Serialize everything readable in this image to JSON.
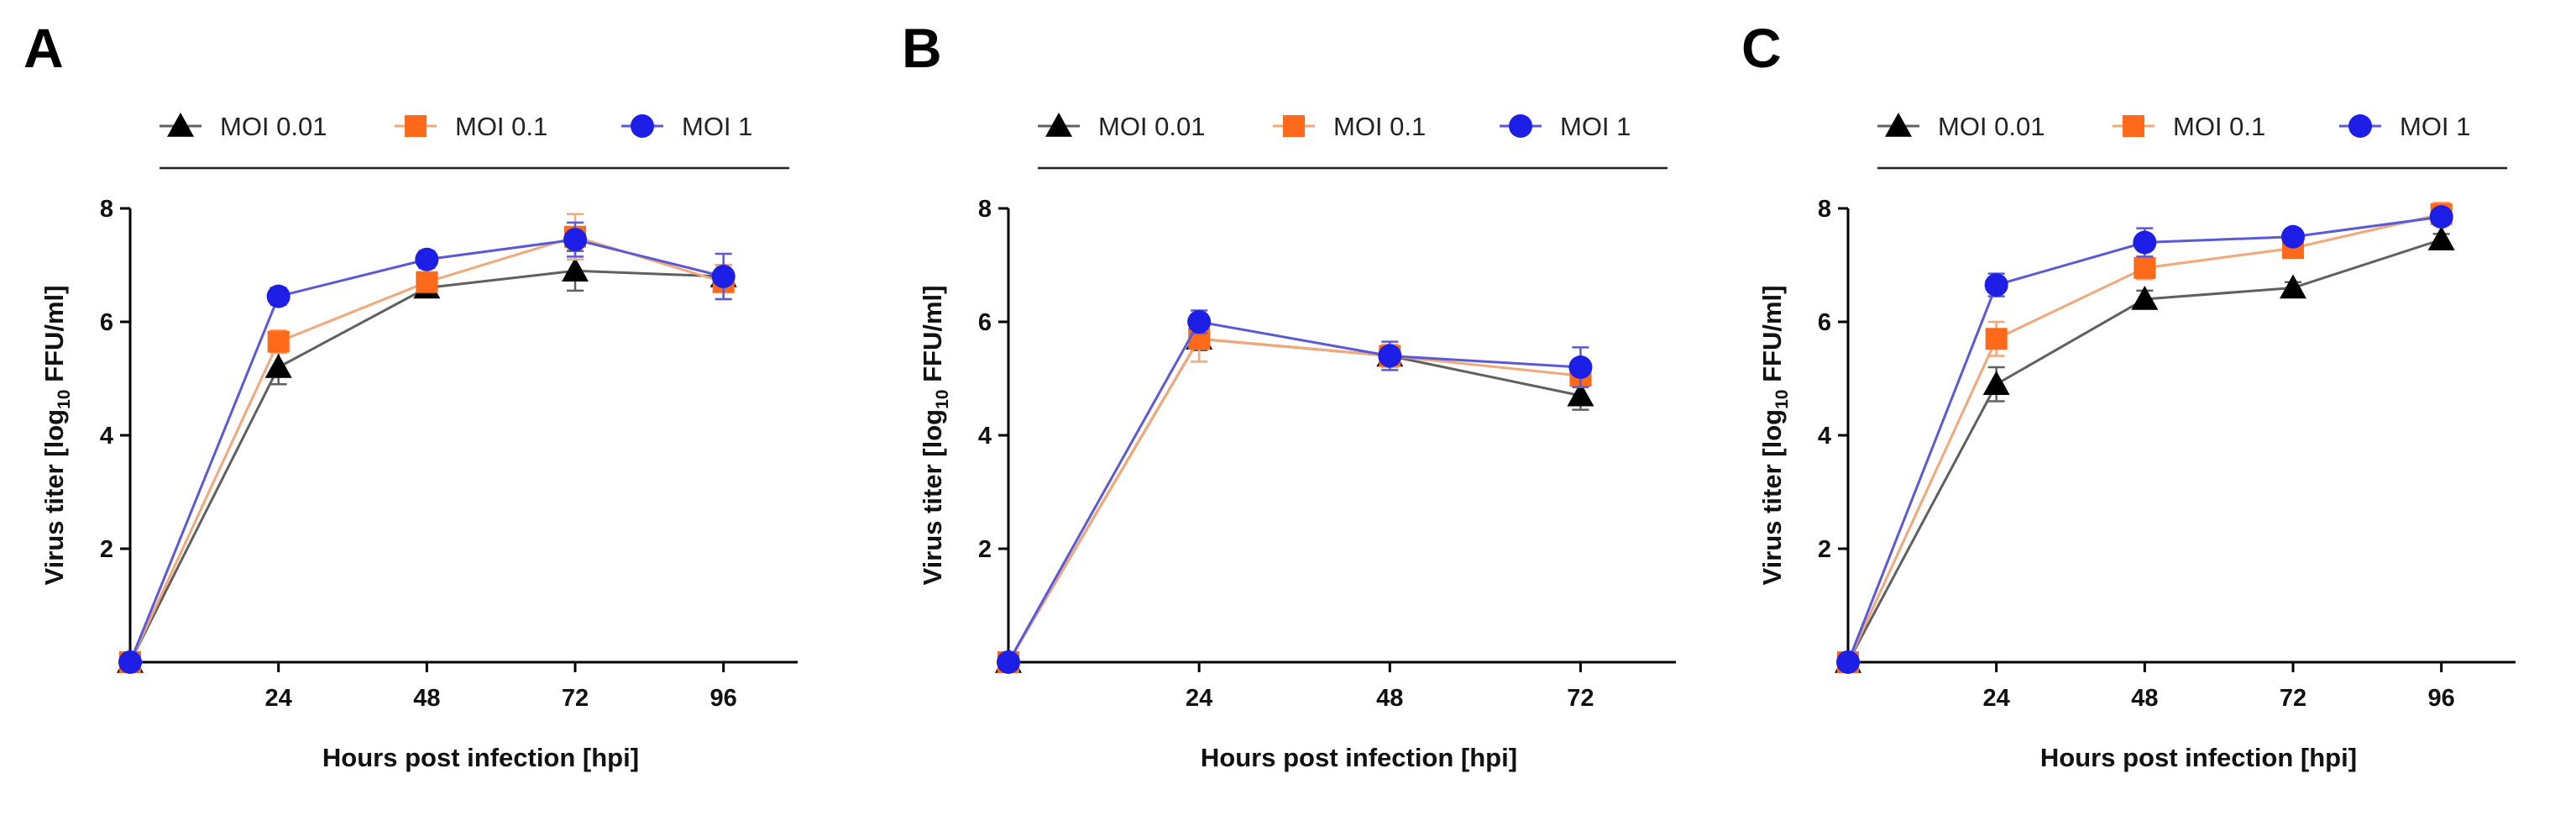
{
  "figure": {
    "panels": [
      {
        "letter": "A"
      },
      {
        "letter": "B"
      },
      {
        "letter": "C"
      }
    ]
  },
  "chart_data": [
    {
      "panel": "A",
      "type": "line",
      "xlabel": "Hours post infection [hpi]",
      "ylabel": "Virus titer [log10 FFU/ml]",
      "ylabel_parts": {
        "pre": "Virus titer [log",
        "sub": "10",
        "post": " FFU/ml]"
      },
      "xlim": [
        0,
        108
      ],
      "ylim": [
        0,
        8
      ],
      "xticks": [
        24,
        48,
        72,
        96
      ],
      "yticks": [
        2,
        4,
        6,
        8
      ],
      "legend_position": "top",
      "x": [
        0,
        24,
        48,
        72,
        96
      ],
      "series": [
        {
          "name": "MOI 0.01",
          "marker": "triangle",
          "color": "#000000",
          "line_color": "#606060",
          "values": [
            0,
            5.2,
            6.6,
            6.9,
            6.8
          ],
          "errors": [
            0,
            0.3,
            0.1,
            0.35,
            0.2
          ]
        },
        {
          "name": "MOI 0.1",
          "marker": "square",
          "color": "#ff6a1a",
          "line_color": "#f2a878",
          "values": [
            0,
            5.65,
            6.7,
            7.5,
            6.7
          ],
          "errors": [
            0,
            0.2,
            0.15,
            0.4,
            0.3
          ]
        },
        {
          "name": "MOI 1",
          "marker": "circle",
          "color": "#1d1ee6",
          "line_color": "#5a5ad8",
          "values": [
            0,
            6.45,
            7.1,
            7.45,
            6.8
          ],
          "errors": [
            0,
            0.15,
            0.15,
            0.3,
            0.4
          ]
        }
      ]
    },
    {
      "panel": "B",
      "type": "line",
      "xlabel": "Hours post infection [hpi]",
      "ylabel": "Virus titer [log10 FFU/ml]",
      "ylabel_parts": {
        "pre": "Virus titer [log",
        "sub": "10",
        "post": " FFU/ml]"
      },
      "xlim": [
        0,
        84
      ],
      "ylim": [
        0,
        8
      ],
      "xticks": [
        24,
        48,
        72
      ],
      "yticks": [
        2,
        4,
        6,
        8
      ],
      "legend_position": "top",
      "x": [
        0,
        24,
        48,
        72
      ],
      "series": [
        {
          "name": "MOI 0.01",
          "marker": "triangle",
          "color": "#000000",
          "line_color": "#606060",
          "values": [
            0,
            5.7,
            5.4,
            4.7
          ],
          "errors": [
            0,
            0.2,
            0.15,
            0.25
          ]
        },
        {
          "name": "MOI 0.1",
          "marker": "square",
          "color": "#ff6a1a",
          "line_color": "#f2a878",
          "values": [
            0,
            5.7,
            5.4,
            5.05
          ],
          "errors": [
            0,
            0.4,
            0.2,
            0.2
          ]
        },
        {
          "name": "MOI 1",
          "marker": "circle",
          "color": "#1d1ee6",
          "line_color": "#5a5ad8",
          "values": [
            0,
            6.0,
            5.4,
            5.2
          ],
          "errors": [
            0,
            0.2,
            0.25,
            0.35
          ]
        }
      ]
    },
    {
      "panel": "C",
      "type": "line",
      "xlabel": "Hours post infection [hpi]",
      "ylabel": "Virus titer [log10 FFU/ml]",
      "ylabel_parts": {
        "pre": "Virus titer [log",
        "sub": "10",
        "post": " FFU/ml]"
      },
      "xlim": [
        0,
        108
      ],
      "ylim": [
        0,
        8
      ],
      "xticks": [
        24,
        48,
        72,
        96
      ],
      "yticks": [
        2,
        4,
        6,
        8
      ],
      "legend_position": "top",
      "x": [
        0,
        24,
        48,
        72,
        96
      ],
      "series": [
        {
          "name": "MOI 0.01",
          "marker": "triangle",
          "color": "#000000",
          "line_color": "#606060",
          "values": [
            0,
            4.9,
            6.4,
            6.6,
            7.45
          ],
          "errors": [
            0,
            0.3,
            0.15,
            0.1,
            0.1
          ]
        },
        {
          "name": "MOI 0.1",
          "marker": "square",
          "color": "#ff6a1a",
          "line_color": "#f2a878",
          "values": [
            0,
            5.7,
            6.95,
            7.3,
            7.9
          ],
          "errors": [
            0,
            0.3,
            0.2,
            0.1,
            0.2
          ]
        },
        {
          "name": "MOI 1",
          "marker": "circle",
          "color": "#1d1ee6",
          "line_color": "#5a5ad8",
          "values": [
            0,
            6.65,
            7.4,
            7.5,
            7.85
          ],
          "errors": [
            0,
            0.2,
            0.25,
            0.1,
            0.1
          ]
        }
      ]
    }
  ]
}
